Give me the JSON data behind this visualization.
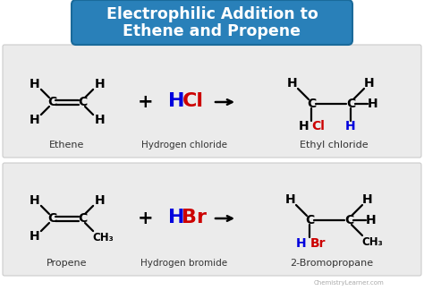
{
  "title_line1": "Electrophilic Addition to",
  "title_line2": "Ethene and Propene",
  "title_bg": "#2980b9",
  "title_color": "white",
  "bg_color": "#ffffff",
  "panel1_bg": "#ebebeb",
  "panel2_bg": "#ebebeb",
  "watermark": "ChemistryLearner.com",
  "row1": {
    "reactant_label": "Ethene",
    "reagent_H": "H",
    "reagent_Cl": "Cl",
    "reagent_H_color": "#0000dd",
    "reagent_Cl_color": "#cc0000",
    "reagent_label": "Hydrogen chloride",
    "product_label": "Ethyl chloride",
    "product_Cl_color": "#cc0000",
    "product_H_color": "#0000dd"
  },
  "row2": {
    "reactant_label": "Propene",
    "reagent_H": "H",
    "reagent_Br": "Br",
    "reagent_H_color": "#0000dd",
    "reagent_Br_color": "#cc0000",
    "reagent_label": "Hydrogen bromide",
    "product_label": "2-Bromopropane",
    "product_Br_color": "#cc0000",
    "product_H_color": "#0000dd"
  }
}
